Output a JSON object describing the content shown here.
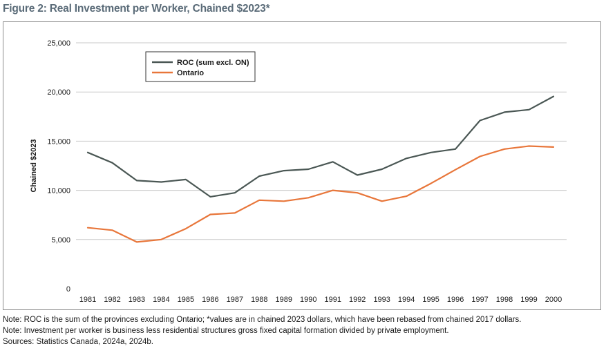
{
  "figure": {
    "title": "Figure 2: Real Investment per Worker, Chained $2023*"
  },
  "notes": [
    "Note: ROC is the sum of the provinces excluding Ontario; *values are in chained 2023 dollars, which have been rebased from chained 2017 dollars.",
    "Note: Investment per worker is business less residential structures gross fixed capital formation divided by private employment.",
    "Sources: Statistics Canada, 2024a, 2024b."
  ],
  "chart_data": {
    "type": "line",
    "title": "Figure 2: Real Investment per Worker, Chained $2023*",
    "xlabel": "",
    "ylabel": "Chained $2023",
    "categories": [
      "1981",
      "1982",
      "1983",
      "1984",
      "1985",
      "1986",
      "1987",
      "1988",
      "1989",
      "1990",
      "1991",
      "1992",
      "1993",
      "1994",
      "1995",
      "1996",
      "1997",
      "1998",
      "1999",
      "2000"
    ],
    "ylim": [
      0,
      25000
    ],
    "yticks": [
      0,
      5000,
      10000,
      15000,
      20000,
      25000
    ],
    "ytick_labels": [
      "0",
      "5,000",
      "10,000",
      "15,000",
      "20,000",
      "25,000"
    ],
    "grid": "horizontal",
    "legend_position": "top-left",
    "series": [
      {
        "name": "ROC (sum excl. ON)",
        "color": "#4a5754",
        "values": [
          13850,
          12800,
          11000,
          10850,
          11100,
          9350,
          9750,
          11450,
          12000,
          12150,
          12900,
          11550,
          12150,
          13250,
          13850,
          14200,
          17100,
          17950,
          18200,
          19550
        ]
      },
      {
        "name": "Ontario",
        "color": "#e8763a",
        "values": [
          6200,
          5950,
          4750,
          5000,
          6100,
          7550,
          7700,
          9000,
          8900,
          9250,
          10000,
          9750,
          8900,
          9400,
          10700,
          12100,
          13450,
          14200,
          14500,
          14400
        ]
      }
    ]
  }
}
